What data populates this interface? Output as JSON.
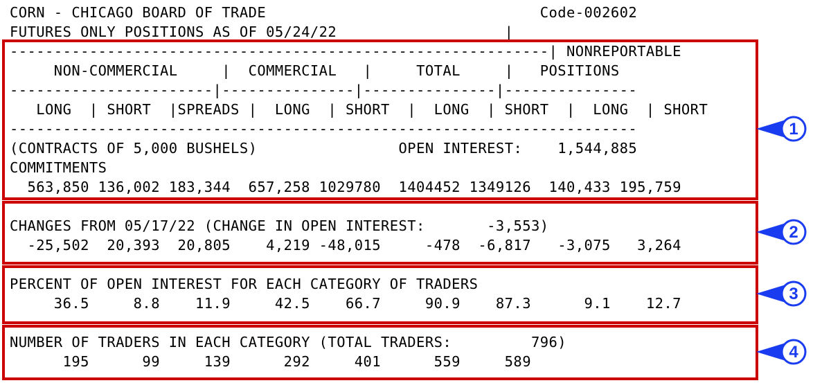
{
  "report": {
    "title": "CORN - CHICAGO BOARD OF TRADE",
    "code": "Code-002602",
    "subtitle": "FUTURES ONLY POSITIONS AS OF 05/24/22",
    "header": {
      "separator_top": "-------------------------------------------------------------",
      "groups": {
        "noncommercial": "NON-COMMERCIAL",
        "commercial": "COMMERCIAL",
        "total": "TOTAL",
        "nonreportable_1": "NONREPORTABLE",
        "nonreportable_2": "POSITIONS"
      },
      "columns": [
        "LONG",
        "SHORT",
        "SPREADS",
        "LONG",
        "SHORT",
        "LONG",
        "SHORT",
        "LONG",
        "SHORT"
      ]
    },
    "units": "(CONTRACTS OF 5,000 BUSHELS)",
    "open_interest_label": "OPEN INTEREST:",
    "open_interest_value": "1,544,885",
    "commitments": {
      "label": "COMMITMENTS",
      "values": [
        "563,850",
        "136,002",
        "183,344",
        "657,258",
        "1029780",
        "1404452",
        "1349126",
        "140,433",
        "195,759"
      ]
    },
    "changes": {
      "label": "CHANGES FROM 05/17/22 (CHANGE IN OPEN INTEREST:",
      "oi_change": "-3,553",
      "values": [
        "-25,502",
        "20,393",
        "20,805",
        "4,219",
        "-48,015",
        "-478",
        "-6,817",
        "-3,075",
        "3,264"
      ]
    },
    "percent": {
      "label": "PERCENT OF OPEN INTEREST FOR EACH CATEGORY OF TRADERS",
      "values": [
        "36.5",
        "8.8",
        "11.9",
        "42.5",
        "66.7",
        "90.9",
        "87.3",
        "9.1",
        "12.7"
      ]
    },
    "traders": {
      "label": "NUMBER OF TRADERS IN EACH CATEGORY (TOTAL TRADERS:",
      "total": "796",
      "values": [
        "195",
        "99",
        "139",
        "292",
        "401",
        "559",
        "589"
      ]
    }
  },
  "markers": [
    "1",
    "2",
    "3",
    "4"
  ],
  "colors": {
    "box": "#cc0000",
    "marker": "#1a3cf0"
  }
}
